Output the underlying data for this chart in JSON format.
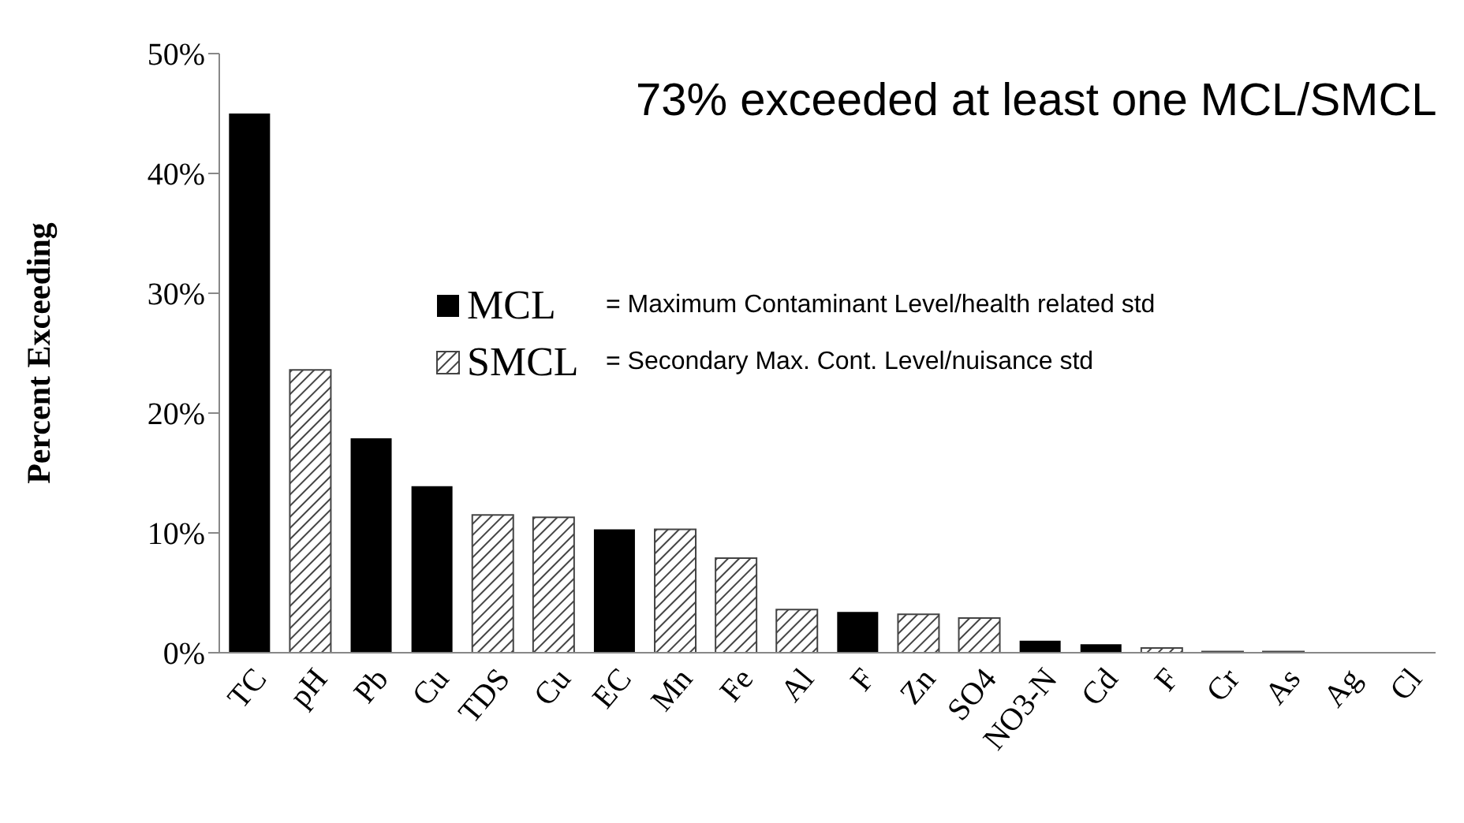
{
  "chart_data": {
    "type": "bar",
    "ylabel": "Percent Exceeding",
    "categories": [
      "TC",
      "pH",
      "Pb",
      "Cu",
      "TDS",
      "Cu",
      "EC",
      "Mn",
      "Fe",
      "Al",
      "F",
      "Zn",
      "SO4",
      "NO3-N",
      "Cd",
      "F",
      "Cr",
      "As",
      "Ag",
      "Cl"
    ],
    "series": [
      {
        "name": "MCL",
        "color": "#000000",
        "values": [
          45,
          null,
          17.9,
          13.9,
          null,
          null,
          10.3,
          null,
          null,
          null,
          3.4,
          null,
          null,
          1.0,
          0.7,
          null,
          null,
          null,
          null,
          null
        ]
      },
      {
        "name": "SMCL",
        "color": "#444444",
        "values": [
          null,
          23.6,
          null,
          null,
          11.5,
          11.3,
          null,
          10.3,
          7.9,
          3.6,
          null,
          3.2,
          2.9,
          null,
          null,
          0.4,
          0.1,
          0.1,
          0,
          0
        ]
      }
    ],
    "stacked": true,
    "ylim": [
      0,
      50
    ],
    "yticks": [
      {
        "value": 0,
        "label": "0%"
      },
      {
        "value": 10,
        "label": "10%"
      },
      {
        "value": 20,
        "label": "20%"
      },
      {
        "value": 30,
        "label": "30%"
      },
      {
        "value": 40,
        "label": "40%"
      },
      {
        "value": 50,
        "label": "50%"
      }
    ],
    "legend": "top left",
    "grid": false,
    "annotations": [
      "73% exceeded at least one MCL/SMCL",
      "= Maximum Contaminant Level/health related std",
      "= Secondary Max. Cont. Level/nuisance std"
    ]
  }
}
